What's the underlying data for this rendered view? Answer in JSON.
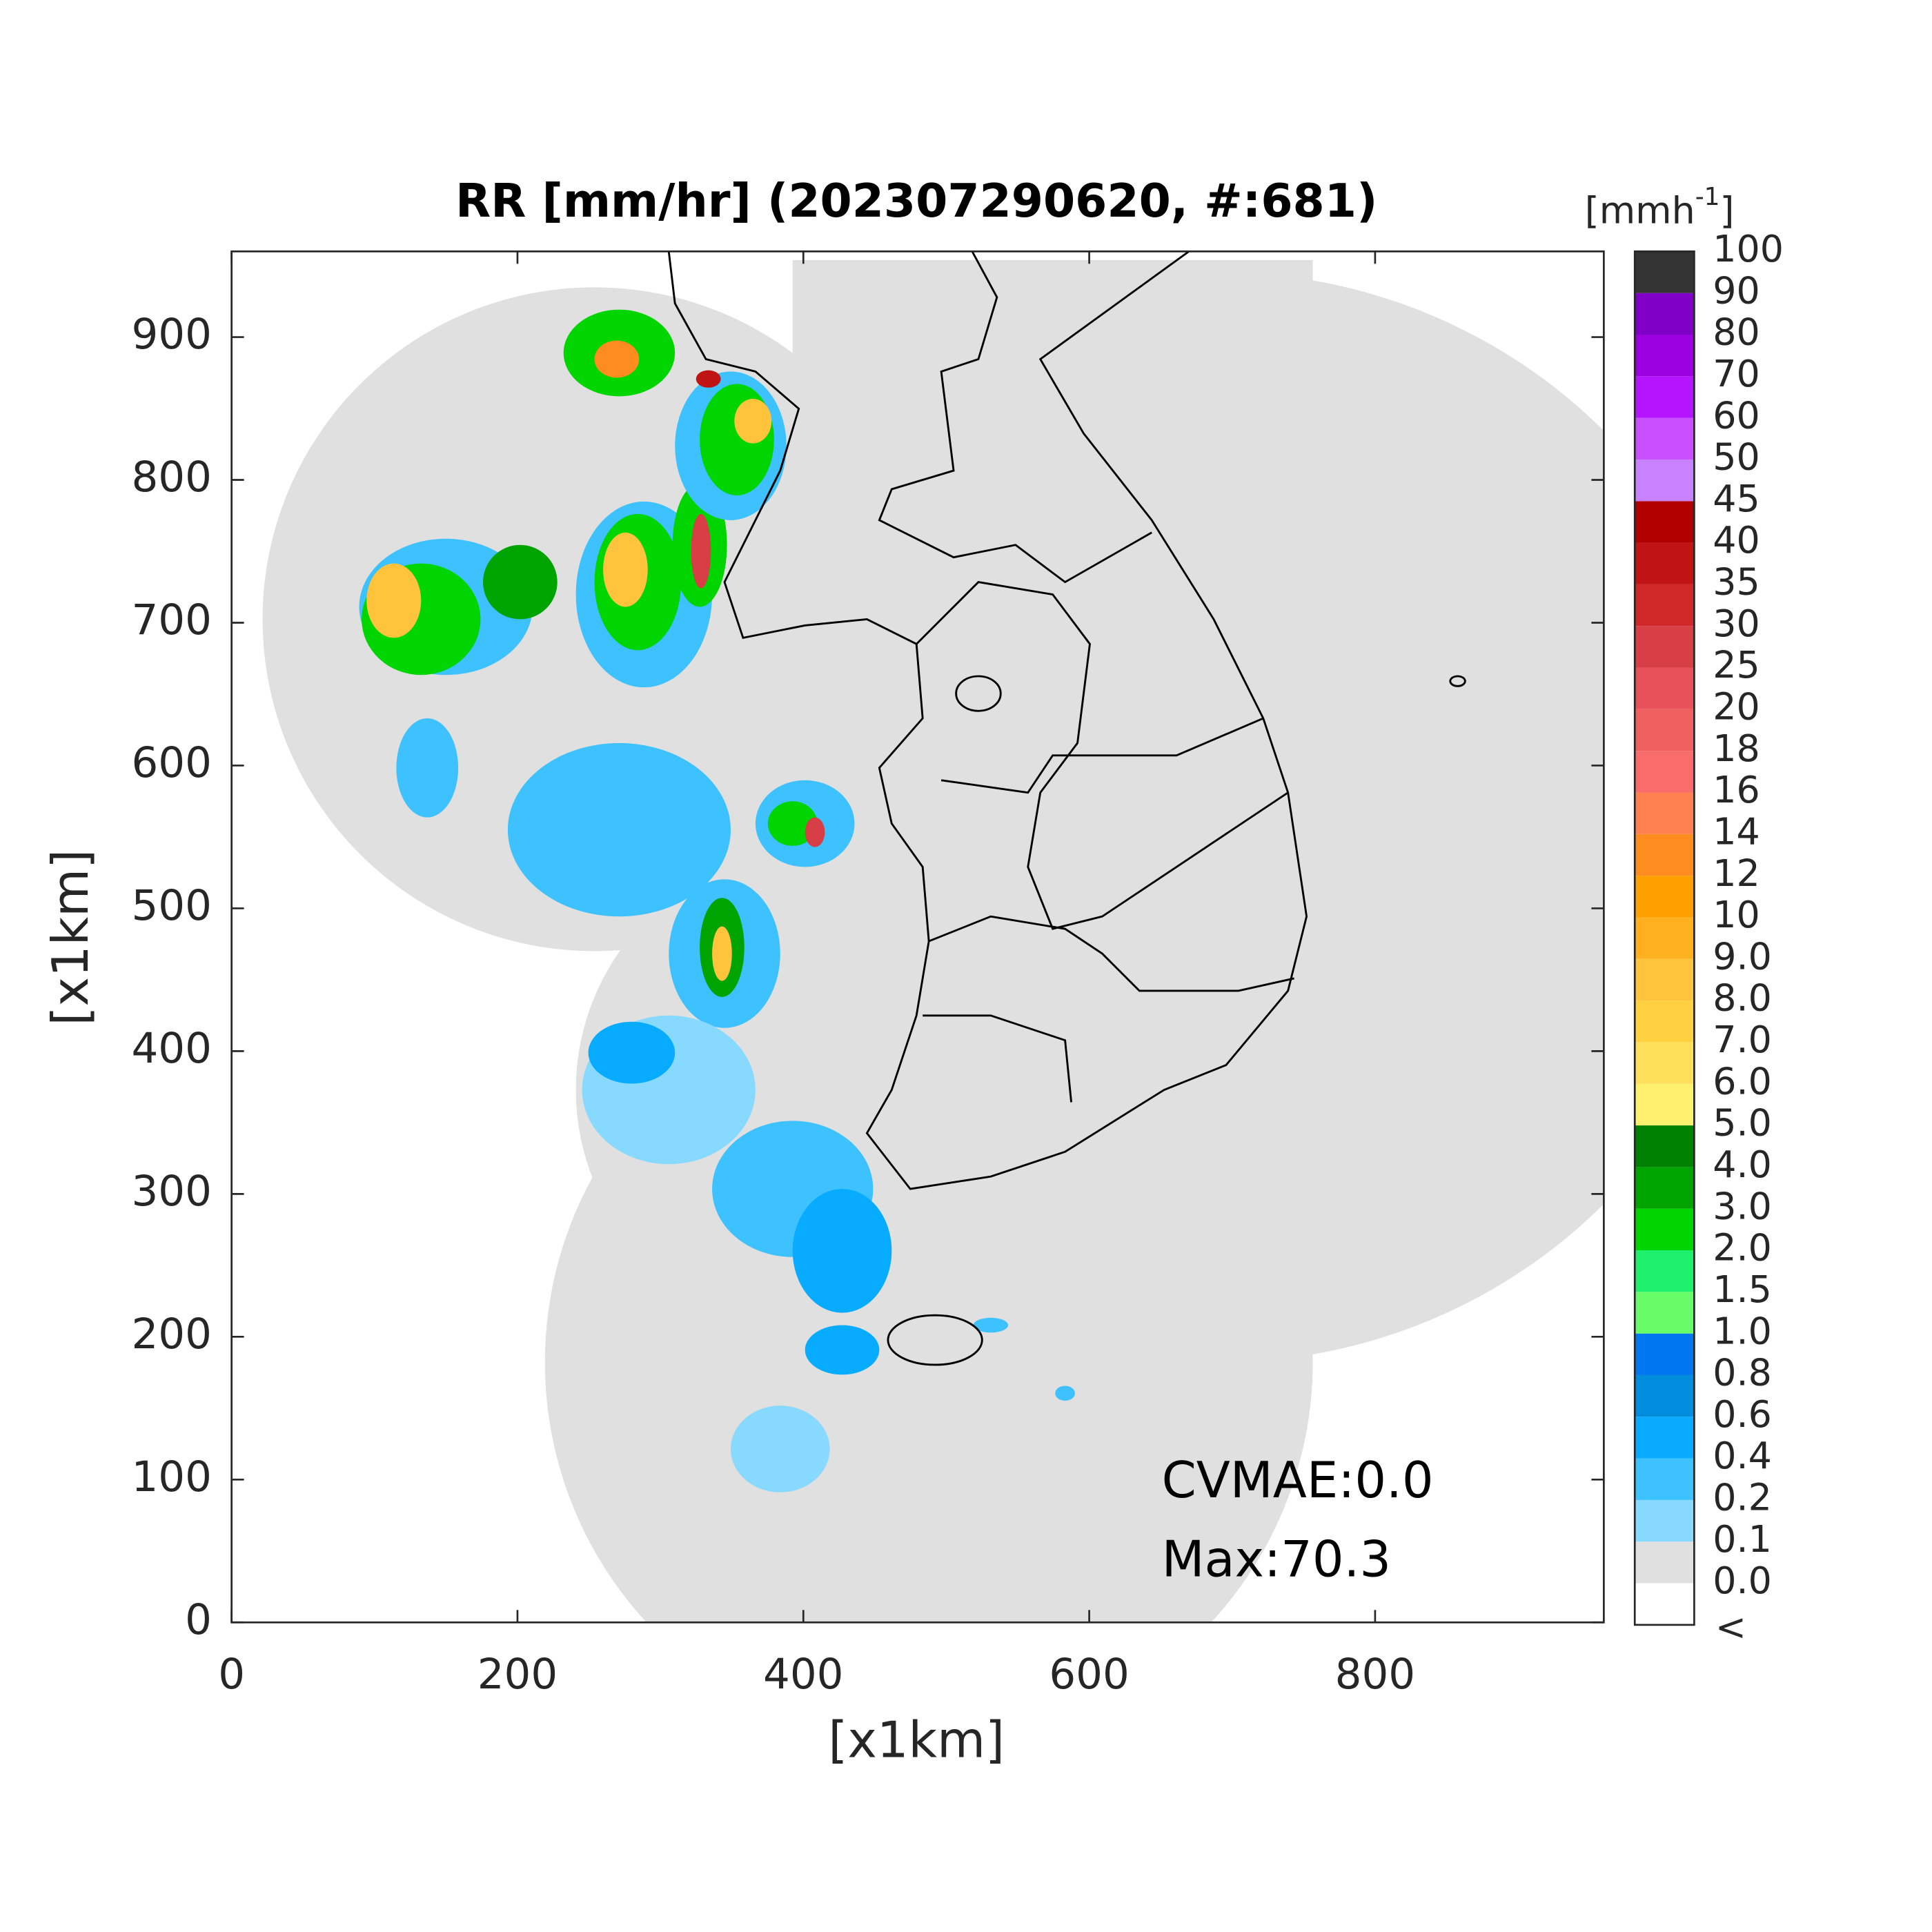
{
  "chart_data": {
    "type": "map",
    "title": "RR [mm/hr] (202307290620, #:681)",
    "xlabel": "[x1km]",
    "ylabel": "[x1km]",
    "xlim": [
      0,
      960
    ],
    "ylim": [
      0,
      960
    ],
    "xticks": [
      0,
      200,
      400,
      600,
      800
    ],
    "yticks": [
      0,
      100,
      200,
      300,
      400,
      500,
      600,
      700,
      800,
      900
    ],
    "annotations": [
      "CVMAE:0.0",
      "Max:70.3"
    ],
    "colorbar": {
      "unit_base": "[mmh",
      "unit_exponent": "-1",
      "unit_close": "]",
      "under_label": "<",
      "ticks": [
        {
          "value": 0,
          "label": "0.0"
        },
        0.1,
        0.2,
        0.4,
        0.6,
        0.8,
        {
          "value": 1,
          "label": "1.0"
        },
        1.5,
        {
          "value": 2,
          "label": "2.0"
        },
        {
          "value": 3,
          "label": "3.0"
        },
        {
          "value": 4,
          "label": "4.0"
        },
        {
          "value": 5,
          "label": "5.0"
        },
        {
          "value": 6,
          "label": "6.0"
        },
        {
          "value": 7,
          "label": "7.0"
        },
        {
          "value": 8,
          "label": "8.0"
        },
        {
          "value": 9,
          "label": "9.0"
        },
        10,
        12,
        14,
        16,
        18,
        20,
        25,
        30,
        35,
        40,
        45,
        50,
        60,
        70,
        80,
        90,
        100
      ],
      "colors": [
        "#ffffff",
        "#e0e0e0",
        "#87d9ff",
        "#3ec1ff",
        "#07abff",
        "#008dde",
        "#0077f0",
        "#69fc69",
        "#1ef06e",
        "#00d500",
        "#00a400",
        "#008000",
        "#fff06e",
        "#ffe05a",
        "#ffd040",
        "#ffc33c",
        "#ffb01e",
        "#ffa000",
        "#ff8c1e",
        "#ff8050",
        "#f86c6c",
        "#f06060",
        "#e8505a",
        "#d83e46",
        "#d02828",
        "#c01414",
        "#b00000",
        "#c882ff",
        "#c850ff",
        "#b414ff",
        "#9a00e0",
        "#8000c8",
        "#333333"
      ]
    }
  }
}
